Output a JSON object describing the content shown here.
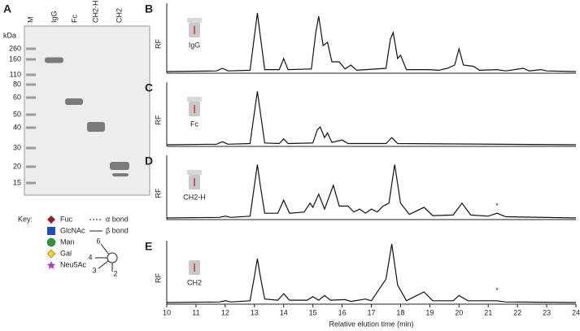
{
  "gel": {
    "panel": "A",
    "unit": "kDa",
    "lanes": [
      "M",
      "IgG",
      "Fc",
      "CH2-H",
      "CH2"
    ],
    "marker_labels": [
      260,
      160,
      110,
      80,
      60,
      50,
      40,
      30,
      20,
      15
    ]
  },
  "key": {
    "title": "Key:",
    "items": [
      "Fuc",
      "GlcNAc",
      "Man",
      "Gal",
      "Neu5Ac"
    ],
    "bonds": [
      "α bond",
      "β bond"
    ],
    "linkages": [
      "6",
      "4",
      "3",
      "2"
    ]
  },
  "chart_data": [
    {
      "type": "line",
      "panel": "B",
      "ylabel": "RF",
      "label": "IgG",
      "xlim": [
        10,
        24
      ],
      "ylim": [
        0,
        100
      ],
      "x": [
        10,
        11.7,
        11.9,
        12.1,
        12.85,
        13.0,
        13.1,
        13.2,
        13.35,
        13.85,
        14.0,
        14.15,
        14.95,
        15.1,
        15.2,
        15.35,
        15.5,
        15.65,
        15.9,
        16.1,
        16.3,
        16.5,
        17.5,
        17.65,
        17.75,
        17.9,
        18.0,
        18.2,
        19.0,
        19.3,
        19.6,
        19.85,
        20.0,
        20.15,
        20.5,
        20.7,
        21.3,
        21.6,
        22.2,
        22.4,
        22.8,
        23.0,
        24
      ],
      "series": [
        {
          "color": "#111111",
          "values": [
            0,
            1,
            5,
            1,
            2,
            55,
            90,
            55,
            3,
            3,
            20,
            3,
            4,
            60,
            85,
            40,
            45,
            15,
            15,
            4,
            10,
            2,
            5,
            50,
            60,
            20,
            25,
            3,
            3,
            2,
            5,
            10,
            35,
            10,
            8,
            2,
            3,
            1,
            5,
            1,
            3,
            1,
            0
          ]
        }
      ]
    },
    {
      "type": "line",
      "panel": "C",
      "ylabel": "RF",
      "label": "Fc",
      "xlim": [
        10,
        24
      ],
      "ylim": [
        0,
        100
      ],
      "x": [
        10,
        11.7,
        11.9,
        12.1,
        12.85,
        13.0,
        13.1,
        13.2,
        13.35,
        13.85,
        14.0,
        14.15,
        15.0,
        15.15,
        15.25,
        15.4,
        15.5,
        15.65,
        16.0,
        16.2,
        17.5,
        17.7,
        17.9,
        24
      ],
      "series": [
        {
          "color": "#111111",
          "values": [
            0,
            1,
            5,
            1,
            2,
            55,
            90,
            55,
            3,
            2,
            10,
            2,
            3,
            25,
            30,
            12,
            20,
            4,
            8,
            2,
            2,
            12,
            2,
            0
          ]
        }
      ]
    },
    {
      "type": "line",
      "panel": "D",
      "ylabel": "RF",
      "label": "CH2-H",
      "annotation": "*",
      "xlim": [
        10,
        24
      ],
      "ylim": [
        0,
        100
      ],
      "x": [
        10,
        11.8,
        12.0,
        12.2,
        12.85,
        13.0,
        13.1,
        13.2,
        13.35,
        13.8,
        14.0,
        14.2,
        14.7,
        14.9,
        15.0,
        15.2,
        15.4,
        15.7,
        15.9,
        16.2,
        16.4,
        16.6,
        16.8,
        17.0,
        17.2,
        17.4,
        17.6,
        17.8,
        18.0,
        18.3,
        18.8,
        19.1,
        19.8,
        20.1,
        20.4,
        21.0,
        21.3,
        21.6,
        24
      ],
      "series": [
        {
          "color": "#111111",
          "values": [
            0,
            1,
            3,
            1,
            3,
            55,
            90,
            55,
            8,
            8,
            30,
            8,
            10,
            25,
            18,
            40,
            15,
            55,
            20,
            20,
            10,
            15,
            8,
            15,
            10,
            20,
            25,
            90,
            25,
            6,
            18,
            4,
            5,
            25,
            5,
            3,
            8,
            2,
            0
          ]
        }
      ]
    },
    {
      "type": "line",
      "panel": "E",
      "ylabel": "RF",
      "label": "CH2",
      "annotation": "*",
      "xlabel": "Relative elution time (min)",
      "xlim": [
        10,
        24
      ],
      "ylim": [
        0,
        100
      ],
      "xticks": [
        10,
        11,
        12,
        13,
        14,
        15,
        16,
        17,
        18,
        19,
        20,
        21,
        22,
        23,
        24
      ],
      "x": [
        10,
        11.8,
        12.0,
        12.2,
        12.85,
        13.0,
        13.1,
        13.2,
        13.35,
        13.8,
        14.0,
        14.2,
        14.8,
        15.0,
        15.2,
        15.4,
        15.6,
        16.1,
        16.3,
        16.8,
        17.0,
        17.5,
        17.7,
        17.9,
        18.2,
        18.8,
        19.1,
        19.8,
        20.0,
        20.3,
        21.3,
        21.6,
        24
      ],
      "series": [
        {
          "color": "#111111",
          "values": [
            0,
            1,
            3,
            1,
            3,
            45,
            75,
            45,
            6,
            4,
            15,
            4,
            4,
            10,
            4,
            12,
            4,
            5,
            2,
            6,
            3,
            40,
            100,
            30,
            3,
            18,
            3,
            3,
            12,
            3,
            3,
            1,
            0
          ]
        }
      ]
    }
  ]
}
